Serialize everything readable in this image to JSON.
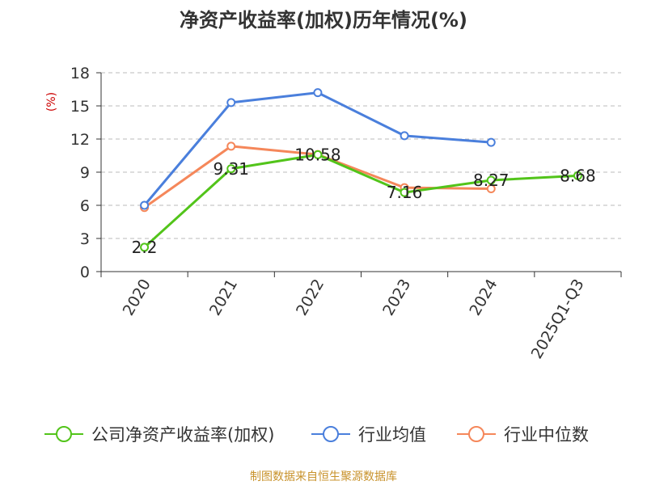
{
  "chart_data": {
    "type": "line",
    "title": "净资产收益率(加权)历年情况(%)",
    "ylabel": "(%)",
    "xlabel": "",
    "ylim": [
      0,
      18
    ],
    "yticks": [
      0,
      3,
      6,
      9,
      12,
      15,
      18
    ],
    "categories": [
      "2020",
      "2021",
      "2022",
      "2023",
      "2024",
      "2025Q1-Q3"
    ],
    "grid": "horizontal-dashed",
    "legend_position": "bottom",
    "series": [
      {
        "name": "公司净资产收益率(加权)",
        "color": "#52c41a",
        "values": [
          2.2,
          9.31,
          10.58,
          7.16,
          8.27,
          8.68
        ],
        "labels": [
          "2.2",
          "9.31",
          "10.58",
          "7.16",
          "8.27",
          "8.68"
        ],
        "show_labels": true
      },
      {
        "name": "行业均值",
        "color": "#4a7fdc",
        "values": [
          6.0,
          15.3,
          16.2,
          12.3,
          11.7,
          null
        ],
        "show_labels": false
      },
      {
        "name": "行业中位数",
        "color": "#f5875a",
        "values": [
          5.8,
          11.35,
          10.6,
          7.6,
          7.5,
          null
        ],
        "show_labels": false
      }
    ]
  },
  "footer": {
    "source": "制图数据来自恒生聚源数据库"
  },
  "colors": {
    "title": "#333333",
    "axis": "#333333",
    "grid": "#bbbbbb",
    "ylabel": "#cc0000",
    "source": "#c8922b"
  }
}
